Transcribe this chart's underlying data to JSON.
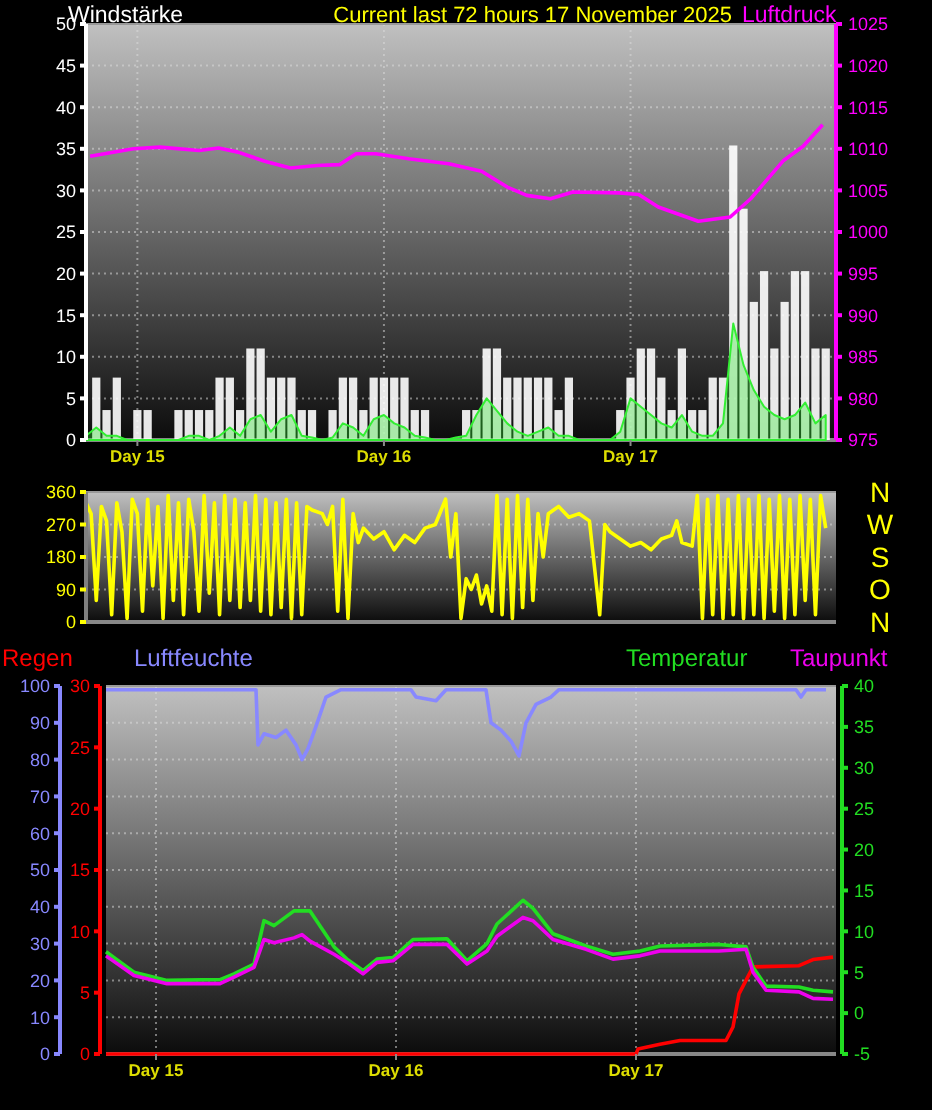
{
  "chart_data": [
    {
      "type": "bar",
      "title": "Current last 72 hours 17 November 2025",
      "ylabel": "Windstärke",
      "y2label": "Luftdruck",
      "xlim": [
        "2025-11-14T19:00",
        "2025-11-17T20:00"
      ],
      "xticks": [
        {
          "value": "2025-11-15T00:00",
          "label": "Day 15"
        },
        {
          "value": "2025-11-16T00:00",
          "label": "Day 16"
        },
        {
          "value": "2025-11-17T00:00",
          "label": "Day 17"
        }
      ],
      "ylim": [
        0,
        50
      ],
      "yticks": [
        0,
        5,
        10,
        15,
        20,
        25,
        30,
        35,
        40,
        45,
        50
      ],
      "y2lim": [
        975,
        1025
      ],
      "y2ticks": [
        975,
        980,
        985,
        990,
        995,
        1000,
        1005,
        1010,
        1015,
        1020,
        1025
      ],
      "grid": true,
      "x": [
        "2025-11-14T19:00",
        "2025-11-14T20:00",
        "2025-11-14T21:00",
        "2025-11-14T22:00",
        "2025-11-14T23:00",
        "2025-11-15T00:00",
        "2025-11-15T01:00",
        "2025-11-15T02:00",
        "2025-11-15T03:00",
        "2025-11-15T04:00",
        "2025-11-15T05:00",
        "2025-11-15T06:00",
        "2025-11-15T07:00",
        "2025-11-15T08:00",
        "2025-11-15T09:00",
        "2025-11-15T10:00",
        "2025-11-15T11:00",
        "2025-11-15T12:00",
        "2025-11-15T13:00",
        "2025-11-15T14:00",
        "2025-11-15T15:00",
        "2025-11-15T16:00",
        "2025-11-15T17:00",
        "2025-11-15T18:00",
        "2025-11-15T19:00",
        "2025-11-15T20:00",
        "2025-11-15T21:00",
        "2025-11-15T22:00",
        "2025-11-15T23:00",
        "2025-11-16T00:00",
        "2025-11-16T01:00",
        "2025-11-16T02:00",
        "2025-11-16T03:00",
        "2025-11-16T04:00",
        "2025-11-16T05:00",
        "2025-11-16T06:00",
        "2025-11-16T07:00",
        "2025-11-16T08:00",
        "2025-11-16T09:00",
        "2025-11-16T10:00",
        "2025-11-16T11:00",
        "2025-11-16T12:00",
        "2025-11-16T13:00",
        "2025-11-16T14:00",
        "2025-11-16T15:00",
        "2025-11-16T16:00",
        "2025-11-16T17:00",
        "2025-11-16T18:00",
        "2025-11-16T19:00",
        "2025-11-16T20:00",
        "2025-11-16T21:00",
        "2025-11-16T22:00",
        "2025-11-16T23:00",
        "2025-11-17T00:00",
        "2025-11-17T01:00",
        "2025-11-17T02:00",
        "2025-11-17T03:00",
        "2025-11-17T04:00",
        "2025-11-17T05:00",
        "2025-11-17T06:00",
        "2025-11-17T07:00",
        "2025-11-17T08:00",
        "2025-11-17T09:00",
        "2025-11-17T10:00",
        "2025-11-17T11:00",
        "2025-11-17T12:00",
        "2025-11-17T13:00",
        "2025-11-17T14:00",
        "2025-11-17T15:00",
        "2025-11-17T16:00",
        "2025-11-17T17:00",
        "2025-11-17T18:00",
        "2025-11-17T19:00"
      ],
      "series": [
        {
          "color": "#ffffff",
          "values": [
            0,
            7.5,
            3.6,
            7.5,
            0,
            3.6,
            3.6,
            0,
            0,
            3.6,
            3.6,
            3.6,
            3.6,
            7.5,
            7.5,
            3.6,
            11,
            11,
            7.5,
            7.5,
            7.5,
            3.6,
            3.6,
            0,
            3.6,
            7.5,
            7.5,
            3.6,
            7.5,
            7.5,
            7.5,
            7.5,
            3.6,
            3.6,
            0,
            0,
            0,
            3.6,
            3.6,
            11,
            11,
            7.5,
            7.5,
            7.5,
            7.5,
            7.5,
            3.6,
            7.5,
            0,
            0,
            0,
            0,
            3.6,
            7.5,
            11,
            11,
            7.5,
            3.6,
            11,
            3.6,
            3.6,
            7.5,
            7.5,
            35.4,
            27.8,
            16.6,
            20.3,
            11,
            16.6,
            20.3,
            20.3,
            11,
            11
          ]
        },
        {
          "type": "area",
          "color": "#33ee33",
          "values": [
            0.5,
            1.5,
            0.5,
            0.5,
            0,
            0,
            0,
            0,
            0,
            0,
            0.5,
            0.5,
            0,
            0.5,
            1.5,
            0.5,
            2.5,
            3,
            1,
            2.5,
            3,
            0.5,
            0.3,
            0,
            0.3,
            2,
            1.5,
            0.5,
            2.5,
            3,
            2,
            1.5,
            0.5,
            0.3,
            0,
            0,
            0.3,
            0.5,
            3,
            5,
            3.5,
            2,
            1,
            0.5,
            1,
            1.5,
            0.5,
            0.5,
            0,
            0,
            0,
            0,
            1,
            5,
            4,
            3,
            2,
            1.5,
            3,
            1,
            0.5,
            0.5,
            2,
            14,
            9,
            6,
            4,
            3,
            2.5,
            3,
            4.5,
            2,
            3
          ]
        },
        {
          "type": "line",
          "axis": "y2",
          "color": "#ff00ff",
          "x": [
            "2025-11-14T19:24",
            "2025-11-14T23:36",
            "2025-11-15T02:12",
            "2025-11-15T06:00",
            "2025-11-15T07:54",
            "2025-11-15T09:48",
            "2025-11-15T12:24",
            "2025-11-15T14:54",
            "2025-11-15T17:30",
            "2025-11-15T19:42",
            "2025-11-15T21:18",
            "2025-11-15T23:12",
            "2025-11-16T02:24",
            "2025-11-16T06:18",
            "2025-11-16T09:30",
            "2025-11-16T12:00",
            "2025-11-16T13:54",
            "2025-11-16T16:12",
            "2025-11-16T18:24",
            "2025-11-16T22:54",
            "2025-11-17T00:48",
            "2025-11-17T02:42",
            "2025-11-17T06:36",
            "2025-11-17T09:42",
            "2025-11-17T11:42",
            "2025-11-17T14:54",
            "2025-11-17T16:48",
            "2025-11-17T18:42"
          ],
          "values": [
            1009.1,
            1010,
            1010.2,
            1009.8,
            1010.1,
            1009.6,
            1008.5,
            1007.7,
            1008,
            1008.1,
            1009.4,
            1009.4,
            1008.8,
            1008.2,
            1007.3,
            1005.4,
            1004.4,
            1004,
            1004.8,
            1004.7,
            1004.5,
            1003,
            1001.3,
            1001.8,
            1004,
            1008.6,
            1010.3,
            1012.9
          ]
        }
      ]
    },
    {
      "type": "line",
      "xlim": [
        "2025-11-14T19:00",
        "2025-11-17T20:00"
      ],
      "ylim": [
        0,
        360
      ],
      "yticks": [
        0,
        90,
        180,
        270,
        360
      ],
      "grid": "y",
      "annotations": [
        "N",
        "W",
        "S",
        "O",
        "N"
      ],
      "series": [
        {
          "color": "#ffff00",
          "x": [
            "2025-11-14T19:00",
            "2025-11-14T19:30",
            "2025-11-14T20:00",
            "2025-11-14T20:30",
            "2025-11-14T21:00",
            "2025-11-14T21:30",
            "2025-11-14T22:00",
            "2025-11-14T22:30",
            "2025-11-14T23:00",
            "2025-11-14T23:30",
            "2025-11-15T00:00",
            "2025-11-15T00:30",
            "2025-11-15T01:00",
            "2025-11-15T01:30",
            "2025-11-15T02:00",
            "2025-11-15T02:30",
            "2025-11-15T03:00",
            "2025-11-15T03:30",
            "2025-11-15T04:00",
            "2025-11-15T04:30",
            "2025-11-15T05:00",
            "2025-11-15T05:30",
            "2025-11-15T06:00",
            "2025-11-15T06:30",
            "2025-11-15T07:00",
            "2025-11-15T07:30",
            "2025-11-15T08:00",
            "2025-11-15T08:30",
            "2025-11-15T09:00",
            "2025-11-15T09:30",
            "2025-11-15T10:00",
            "2025-11-15T10:30",
            "2025-11-15T11:00",
            "2025-11-15T11:30",
            "2025-11-15T12:00",
            "2025-11-15T12:30",
            "2025-11-15T13:00",
            "2025-11-15T13:30",
            "2025-11-15T14:00",
            "2025-11-15T14:30",
            "2025-11-15T15:00",
            "2025-11-15T15:30",
            "2025-11-15T16:00",
            "2025-11-15T16:30",
            "2025-11-15T17:00",
            "2025-11-15T18:00",
            "2025-11-15T18:30",
            "2025-11-15T19:00",
            "2025-11-15T19:30",
            "2025-11-15T20:00",
            "2025-11-15T20:30",
            "2025-11-15T21:00",
            "2025-11-15T21:30",
            "2025-11-15T22:00",
            "2025-11-15T23:00",
            "2025-11-16T00:00",
            "2025-11-16T01:00",
            "2025-11-16T02:00",
            "2025-11-16T03:00",
            "2025-11-16T04:00",
            "2025-11-16T05:00",
            "2025-11-16T06:00",
            "2025-11-16T06:30",
            "2025-11-16T07:00",
            "2025-11-16T07:30",
            "2025-11-16T08:00",
            "2025-11-16T08:30",
            "2025-11-16T09:00",
            "2025-11-16T09:30",
            "2025-11-16T10:00",
            "2025-11-16T10:30",
            "2025-11-16T11:00",
            "2025-11-16T11:30",
            "2025-11-16T12:00",
            "2025-11-16T12:30",
            "2025-11-16T13:00",
            "2025-11-16T13:30",
            "2025-11-16T14:00",
            "2025-11-16T14:30",
            "2025-11-16T15:00",
            "2025-11-16T15:30",
            "2025-11-16T16:00",
            "2025-11-16T17:00",
            "2025-11-16T18:00",
            "2025-11-16T19:00",
            "2025-11-16T20:00",
            "2025-11-16T21:00",
            "2025-11-16T21:30",
            "2025-11-16T22:00",
            "2025-11-16T23:00",
            "2025-11-17T00:00",
            "2025-11-17T01:00",
            "2025-11-17T02:00",
            "2025-11-17T03:00",
            "2025-11-17T04:00",
            "2025-11-17T04:30",
            "2025-11-17T05:00",
            "2025-11-17T06:00",
            "2025-11-17T06:30",
            "2025-11-17T07:00",
            "2025-11-17T07:30",
            "2025-11-17T08:00",
            "2025-11-17T08:30",
            "2025-11-17T09:00",
            "2025-11-17T09:30",
            "2025-11-17T10:00",
            "2025-11-17T10:30",
            "2025-11-17T11:00",
            "2025-11-17T11:30",
            "2025-11-17T12:00",
            "2025-11-17T12:30",
            "2025-11-17T13:00",
            "2025-11-17T13:30",
            "2025-11-17T14:00",
            "2025-11-17T14:30",
            "2025-11-17T15:00",
            "2025-11-17T15:30",
            "2025-11-17T16:00",
            "2025-11-17T16:30",
            "2025-11-17T17:00",
            "2025-11-17T17:30",
            "2025-11-17T18:00",
            "2025-11-17T18:30",
            "2025-11-17T19:00"
          ],
          "values": [
            330,
            300,
            60,
            320,
            280,
            20,
            330,
            250,
            10,
            340,
            300,
            30,
            340,
            100,
            320,
            10,
            350,
            60,
            330,
            20,
            340,
            250,
            30,
            350,
            80,
            330,
            20,
            350,
            60,
            340,
            40,
            330,
            60,
            350,
            30,
            340,
            20,
            330,
            40,
            340,
            10,
            330,
            20,
            320,
            310,
            300,
            270,
            320,
            30,
            340,
            10,
            300,
            220,
            260,
            230,
            250,
            200,
            240,
            220,
            260,
            270,
            340,
            180,
            300,
            10,
            120,
            90,
            130,
            50,
            100,
            30,
            350,
            20,
            340,
            10,
            350,
            40,
            340,
            60,
            300,
            180,
            300,
            320,
            290,
            300,
            280,
            20,
            270,
            250,
            230,
            210,
            220,
            200,
            230,
            240,
            280,
            220,
            210,
            350,
            10,
            340,
            20,
            350,
            10,
            340,
            20,
            350,
            10,
            340,
            20,
            350,
            10,
            340,
            30,
            350,
            10,
            340,
            20,
            350,
            60,
            340,
            20,
            350,
            260
          ]
        }
      ]
    },
    {
      "type": "line",
      "xlim": [
        "2025-11-14T19:00",
        "2025-11-17T20:00"
      ],
      "xticks": [
        {
          "value": "2025-11-15T00:00",
          "label": "Day 15"
        },
        {
          "value": "2025-11-16T00:00",
          "label": "Day 16"
        },
        {
          "value": "2025-11-17T00:00",
          "label": "Day 17"
        }
      ],
      "ylim": [
        0,
        100
      ],
      "yticks": [
        0,
        10,
        20,
        30,
        40,
        50,
        60,
        70,
        80,
        90,
        100
      ],
      "y2lim": [
        -5,
        40
      ],
      "y2ticks": [
        -5,
        0,
        5,
        10,
        15,
        20,
        25,
        30,
        35,
        40
      ],
      "y3lim": [
        0,
        30
      ],
      "y3ticks": [
        0,
        5,
        10,
        15,
        20,
        25,
        30
      ],
      "grid": true,
      "legend": "top",
      "series": [
        {
          "name": "Regen",
          "axis": "y3",
          "color": "#ff0000",
          "x": [
            "2025-11-14T19:00",
            "2025-11-17T00:00",
            "2025-11-17T00:12",
            "2025-11-17T02:24",
            "2025-11-17T04:24",
            "2025-11-17T09:00",
            "2025-11-17T09:42",
            "2025-11-17T10:18",
            "2025-11-17T11:42",
            "2025-11-17T16:18",
            "2025-11-17T17:42",
            "2025-11-17T19:42"
          ],
          "values": [
            0,
            0,
            0.4,
            0.8,
            1.1,
            1.1,
            2.2,
            4.9,
            7.1,
            7.2,
            7.7,
            7.9
          ]
        },
        {
          "name": "Luftfeuchte",
          "axis": "y",
          "color": "#8888ff",
          "x": [
            "2025-11-14T19:00",
            "2025-11-15T10:00",
            "2025-11-15T10:12",
            "2025-11-15T10:48",
            "2025-11-15T12:00",
            "2025-11-15T13:00",
            "2025-11-15T14:00",
            "2025-11-15T14:36",
            "2025-11-15T15:12",
            "2025-11-15T16:00",
            "2025-11-15T17:00",
            "2025-11-15T18:30",
            "2025-11-16T01:30",
            "2025-11-16T02:00",
            "2025-11-16T04:00",
            "2025-11-16T05:00",
            "2025-11-16T09:00",
            "2025-11-16T09:30",
            "2025-11-16T10:30",
            "2025-11-16T11:30",
            "2025-11-16T12:18",
            "2025-11-16T13:00",
            "2025-11-16T14:00",
            "2025-11-16T15:30",
            "2025-11-16T16:18",
            "2025-11-17T16:00",
            "2025-11-17T16:30",
            "2025-11-17T17:00",
            "2025-11-17T19:00"
          ],
          "values": [
            99,
            99,
            84,
            87,
            86,
            88,
            84,
            80,
            83,
            89,
            97,
            99,
            99,
            97,
            96,
            99,
            99,
            90,
            88,
            85,
            81,
            90,
            95,
            97,
            99,
            99,
            97,
            99,
            99
          ]
        },
        {
          "name": "Temperatur",
          "axis": "y2",
          "color": "#22dd22",
          "x": [
            "2025-11-14T19:00",
            "2025-11-14T21:48",
            "2025-11-15T01:06",
            "2025-11-15T06:24",
            "2025-11-15T07:48",
            "2025-11-15T09:48",
            "2025-11-15T10:48",
            "2025-11-15T11:48",
            "2025-11-15T13:48",
            "2025-11-15T15:24",
            "2025-11-15T17:48",
            "2025-11-15T19:06",
            "2025-11-15T20:42",
            "2025-11-15T22:06",
            "2025-11-15T23:42",
            "2025-11-16T01:42",
            "2025-11-16T05:06",
            "2025-11-16T07:06",
            "2025-11-16T09:06",
            "2025-11-16T10:06",
            "2025-11-16T12:42",
            "2025-11-16T13:42",
            "2025-11-16T15:42",
            "2025-11-16T19:00",
            "2025-11-16T21:42",
            "2025-11-17T00:24",
            "2025-11-17T02:24",
            "2025-11-17T08:18",
            "2025-11-17T11:00",
            "2025-11-17T11:42",
            "2025-11-17T13:00",
            "2025-11-17T16:18",
            "2025-11-17T17:42",
            "2025-11-17T19:42"
          ],
          "values": [
            7.5,
            5,
            4,
            4.1,
            4.8,
            6,
            11.3,
            10.7,
            12.5,
            12.5,
            8.1,
            6.6,
            5.2,
            6.6,
            6.8,
            9,
            9.1,
            6.4,
            8.5,
            10.9,
            13.8,
            12.8,
            9.7,
            8.2,
            7.2,
            7.6,
            8.2,
            8.4,
            8.1,
            5.6,
            3.3,
            3.2,
            2.8,
            2.6
          ]
        },
        {
          "name": "Taupunkt",
          "axis": "y2",
          "color": "#ee00ee",
          "x": [
            "2025-11-14T19:00",
            "2025-11-14T21:48",
            "2025-11-15T01:06",
            "2025-11-15T06:24",
            "2025-11-15T07:48",
            "2025-11-15T09:48",
            "2025-11-15T10:48",
            "2025-11-15T11:48",
            "2025-11-15T13:48",
            "2025-11-15T14:36",
            "2025-11-15T15:24",
            "2025-11-15T17:48",
            "2025-11-15T19:06",
            "2025-11-15T20:42",
            "2025-11-15T22:06",
            "2025-11-15T23:42",
            "2025-11-16T01:42",
            "2025-11-16T05:06",
            "2025-11-16T07:06",
            "2025-11-16T09:06",
            "2025-11-16T10:06",
            "2025-11-16T12:42",
            "2025-11-16T13:42",
            "2025-11-16T15:42",
            "2025-11-16T19:00",
            "2025-11-16T21:42",
            "2025-11-17T00:24",
            "2025-11-17T02:24",
            "2025-11-17T08:18",
            "2025-11-17T11:00",
            "2025-11-17T11:42",
            "2025-11-17T13:00",
            "2025-11-17T16:18",
            "2025-11-17T17:42",
            "2025-11-17T19:42"
          ],
          "values": [
            7,
            4.6,
            3.6,
            3.6,
            4.4,
            5.6,
            9,
            8.6,
            9.2,
            9.6,
            8.8,
            7.2,
            6.2,
            4.8,
            6.2,
            6.4,
            8.4,
            8.4,
            6,
            7.6,
            9.4,
            11.7,
            11.3,
            9,
            7.8,
            6.6,
            7,
            7.6,
            7.6,
            7.8,
            5,
            2.8,
            2.6,
            1.8,
            1.7
          ]
        }
      ]
    }
  ]
}
